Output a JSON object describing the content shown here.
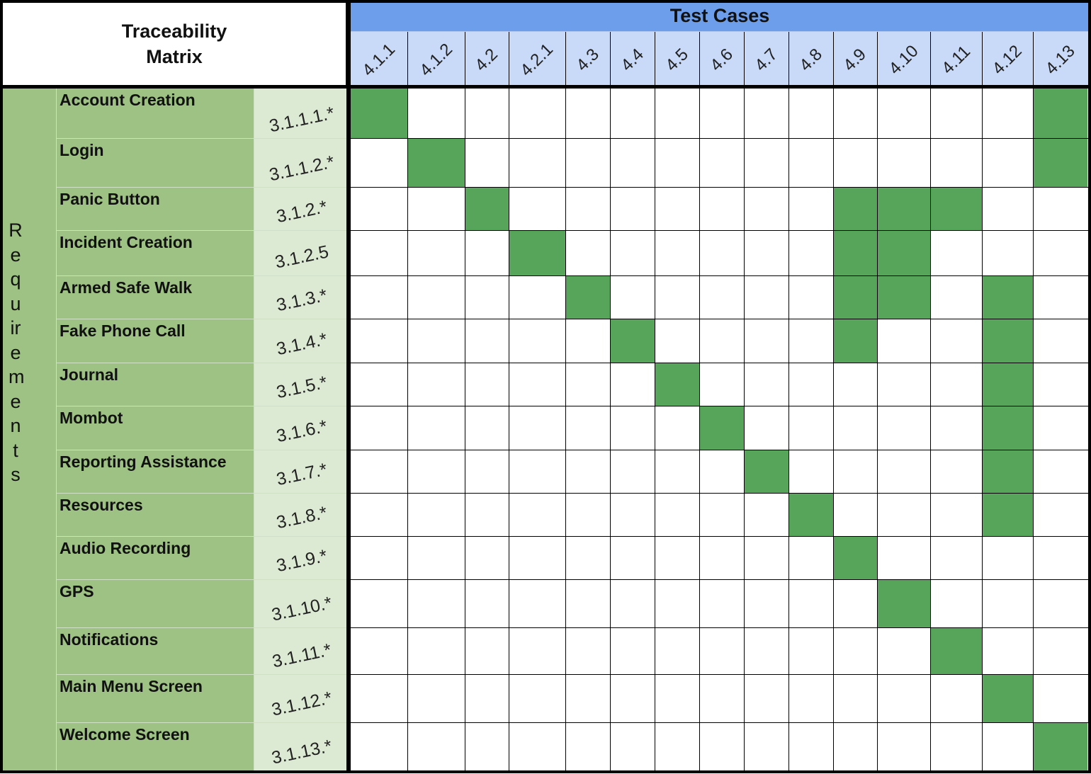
{
  "header": {
    "title": "Traceability Matrix",
    "group": "Test Cases",
    "side_label": "Requirements"
  },
  "test_cases": [
    "4.1.1",
    "4.1.2",
    "4.2",
    "4.2.1",
    "4.3",
    "4.4",
    "4.5",
    "4.6",
    "4.7",
    "4.8",
    "4.9",
    "4.10",
    "4.11",
    "4.12",
    "4.13"
  ],
  "rows": [
    {
      "name": "Account Creation",
      "id": "3.1.1.1.*",
      "cells": [
        true,
        false,
        false,
        false,
        false,
        false,
        false,
        false,
        false,
        false,
        false,
        false,
        false,
        false,
        true
      ]
    },
    {
      "name": "Login",
      "id": "3.1.1.2.*",
      "cells": [
        false,
        true,
        false,
        false,
        false,
        false,
        false,
        false,
        false,
        false,
        false,
        false,
        false,
        false,
        true
      ]
    },
    {
      "name": "Panic Button",
      "id": "3.1.2.*",
      "cells": [
        false,
        false,
        true,
        false,
        false,
        false,
        false,
        false,
        false,
        false,
        true,
        true,
        true,
        false,
        false
      ]
    },
    {
      "name": "Incident Creation",
      "id": "3.1.2.5",
      "cells": [
        false,
        false,
        false,
        true,
        false,
        false,
        false,
        false,
        false,
        false,
        true,
        true,
        false,
        false,
        false
      ]
    },
    {
      "name": "Armed Safe Walk",
      "id": "3.1.3.*",
      "cells": [
        false,
        false,
        false,
        false,
        true,
        false,
        false,
        false,
        false,
        false,
        true,
        true,
        false,
        true,
        false
      ]
    },
    {
      "name": "Fake Phone Call",
      "id": "3.1.4.*",
      "cells": [
        false,
        false,
        false,
        false,
        false,
        true,
        false,
        false,
        false,
        false,
        true,
        false,
        false,
        true,
        false
      ]
    },
    {
      "name": "Journal",
      "id": "3.1.5.*",
      "cells": [
        false,
        false,
        false,
        false,
        false,
        false,
        true,
        false,
        false,
        false,
        false,
        false,
        false,
        true,
        false
      ]
    },
    {
      "name": "Mombot",
      "id": "3.1.6.*",
      "cells": [
        false,
        false,
        false,
        false,
        false,
        false,
        false,
        true,
        false,
        false,
        false,
        false,
        false,
        true,
        false
      ]
    },
    {
      "name": "Reporting Assistance",
      "id": "3.1.7.*",
      "cells": [
        false,
        false,
        false,
        false,
        false,
        false,
        false,
        false,
        true,
        false,
        false,
        false,
        false,
        true,
        false
      ]
    },
    {
      "name": "Resources",
      "id": "3.1.8.*",
      "cells": [
        false,
        false,
        false,
        false,
        false,
        false,
        false,
        false,
        false,
        true,
        false,
        false,
        false,
        true,
        false
      ]
    },
    {
      "name": "Audio Recording",
      "id": "3.1.9.*",
      "cells": [
        false,
        false,
        false,
        false,
        false,
        false,
        false,
        false,
        false,
        false,
        true,
        false,
        false,
        false,
        false
      ]
    },
    {
      "name": "GPS",
      "id": "3.1.10.*",
      "cells": [
        false,
        false,
        false,
        false,
        false,
        false,
        false,
        false,
        false,
        false,
        false,
        true,
        false,
        false,
        false
      ]
    },
    {
      "name": "Notifications",
      "id": "3.1.11.*",
      "cells": [
        false,
        false,
        false,
        false,
        false,
        false,
        false,
        false,
        false,
        false,
        false,
        false,
        true,
        false,
        false
      ]
    },
    {
      "name": "Main Menu Screen",
      "id": "3.1.12.*",
      "cells": [
        false,
        false,
        false,
        false,
        false,
        false,
        false,
        false,
        false,
        false,
        false,
        false,
        false,
        true,
        false
      ]
    },
    {
      "name": "Welcome Screen",
      "id": "3.1.13.*",
      "cells": [
        false,
        false,
        false,
        false,
        false,
        false,
        false,
        false,
        false,
        false,
        false,
        false,
        false,
        false,
        true
      ]
    }
  ]
}
